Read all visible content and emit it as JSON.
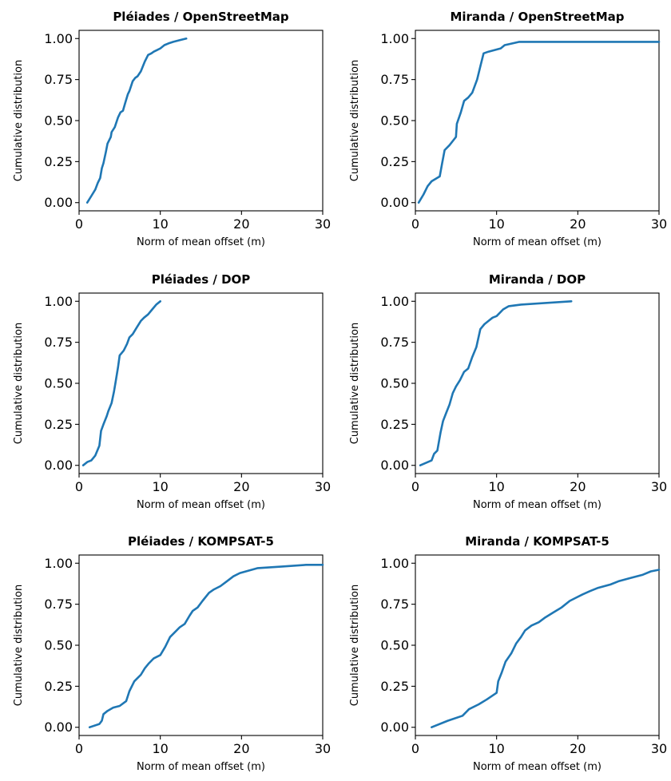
{
  "style": {
    "line_color": "#1f77b4"
  },
  "chart_data": [
    {
      "type": "line",
      "title": "Pléiades / OpenStreetMap",
      "xlabel": "Norm of mean offset (m)",
      "ylabel": "Cumulative distribution",
      "xlim": [
        0,
        30
      ],
      "ylim": [
        -0.05,
        1.05
      ],
      "xticks": [
        "0",
        "10",
        "20",
        "30"
      ],
      "yticks": [
        "0.00",
        "0.25",
        "0.50",
        "0.75",
        "1.00"
      ],
      "x": [
        1.0,
        1.5,
        2.0,
        2.3,
        2.6,
        2.8,
        3.0,
        3.3,
        3.5,
        3.9,
        4.0,
        4.4,
        4.8,
        5.1,
        5.4,
        5.7,
        6.0,
        6.2,
        6.6,
        6.9,
        7.2,
        7.6,
        8.1,
        8.5,
        8.9,
        9.2,
        9.6,
        10.0,
        10.5,
        11.0,
        11.6,
        12.4,
        13.2
      ],
      "y": [
        0.0,
        0.04,
        0.08,
        0.12,
        0.15,
        0.21,
        0.24,
        0.31,
        0.36,
        0.4,
        0.43,
        0.46,
        0.52,
        0.55,
        0.56,
        0.61,
        0.66,
        0.68,
        0.74,
        0.76,
        0.77,
        0.8,
        0.86,
        0.9,
        0.91,
        0.92,
        0.93,
        0.94,
        0.96,
        0.97,
        0.98,
        0.99,
        1.0
      ]
    },
    {
      "type": "line",
      "title": "Miranda / OpenStreetMap",
      "xlabel": "Norm of mean offset (m)",
      "ylabel": "Cumulative distribution",
      "xlim": [
        0,
        30
      ],
      "ylim": [
        -0.05,
        1.05
      ],
      "xticks": [
        "0",
        "10",
        "20",
        "30"
      ],
      "yticks": [
        "0.00",
        "0.25",
        "0.50",
        "0.75",
        "1.00"
      ],
      "x": [
        0.4,
        1.0,
        1.5,
        2.0,
        3.0,
        3.3,
        3.6,
        4.2,
        5.0,
        5.1,
        5.6,
        6.0,
        6.5,
        7.0,
        7.6,
        8.0,
        8.4,
        9.0,
        10.5,
        11.0,
        12.8,
        30.0
      ],
      "y": [
        0.0,
        0.05,
        0.1,
        0.13,
        0.16,
        0.24,
        0.32,
        0.35,
        0.4,
        0.48,
        0.55,
        0.62,
        0.64,
        0.67,
        0.75,
        0.83,
        0.91,
        0.92,
        0.94,
        0.96,
        0.98,
        0.98
      ]
    },
    {
      "type": "line",
      "title": "Pléiades / DOP",
      "xlabel": "Norm of mean offset (m)",
      "ylabel": "Cumulative distribution",
      "xlim": [
        0,
        30
      ],
      "ylim": [
        -0.05,
        1.05
      ],
      "xticks": [
        "0",
        "10",
        "20",
        "30"
      ],
      "yticks": [
        "0.00",
        "0.25",
        "0.50",
        "0.75",
        "1.00"
      ],
      "x": [
        0.5,
        1.0,
        1.5,
        2.0,
        2.5,
        2.7,
        3.0,
        3.4,
        3.6,
        4.0,
        4.3,
        4.5,
        4.8,
        5.0,
        5.5,
        5.9,
        6.2,
        6.6,
        7.1,
        7.6,
        8.0,
        8.5,
        9.0,
        9.5,
        10.0
      ],
      "y": [
        0.0,
        0.02,
        0.03,
        0.06,
        0.12,
        0.21,
        0.25,
        0.3,
        0.33,
        0.38,
        0.45,
        0.51,
        0.6,
        0.67,
        0.7,
        0.74,
        0.78,
        0.8,
        0.84,
        0.88,
        0.9,
        0.92,
        0.95,
        0.98,
        1.0
      ]
    },
    {
      "type": "line",
      "title": "Miranda / DOP",
      "xlabel": "Norm of mean offset (m)",
      "ylabel": "Cumulative distribution",
      "xlim": [
        0,
        30
      ],
      "ylim": [
        -0.05,
        1.05
      ],
      "xticks": [
        "0",
        "10",
        "20",
        "30"
      ],
      "yticks": [
        "0.00",
        "0.25",
        "0.50",
        "0.75",
        "1.00"
      ],
      "x": [
        0.6,
        2.0,
        2.3,
        2.7,
        3.1,
        3.4,
        3.8,
        4.2,
        4.6,
        5.0,
        5.5,
        6.0,
        6.5,
        7.0,
        7.5,
        8.0,
        8.5,
        9.0,
        9.5,
        10.0,
        10.8,
        11.5,
        13.0,
        19.2
      ],
      "y": [
        0.0,
        0.03,
        0.07,
        0.09,
        0.2,
        0.27,
        0.32,
        0.37,
        0.44,
        0.48,
        0.52,
        0.57,
        0.59,
        0.66,
        0.72,
        0.83,
        0.86,
        0.88,
        0.9,
        0.91,
        0.95,
        0.97,
        0.98,
        1.0
      ]
    },
    {
      "type": "line",
      "title": "Pléiades / KOMPSAT-5",
      "xlabel": "Norm of mean offset (m)",
      "ylabel": "Cumulative distribution",
      "xlim": [
        0,
        30
      ],
      "ylim": [
        -0.05,
        1.05
      ],
      "xticks": [
        "0",
        "10",
        "20",
        "30"
      ],
      "yticks": [
        "0.00",
        "0.25",
        "0.50",
        "0.75",
        "1.00"
      ],
      "x": [
        1.3,
        2.5,
        2.8,
        3.0,
        3.5,
        4.2,
        5.0,
        5.8,
        6.2,
        6.8,
        7.2,
        7.6,
        8.1,
        8.6,
        9.2,
        10.0,
        10.6,
        11.2,
        11.8,
        12.4,
        13.0,
        13.6,
        14.0,
        14.6,
        15.2,
        16.0,
        16.6,
        17.4,
        18.2,
        19.0,
        19.8,
        22.0,
        25.0,
        28.0,
        30.0
      ],
      "y": [
        0.0,
        0.02,
        0.04,
        0.08,
        0.1,
        0.12,
        0.13,
        0.16,
        0.22,
        0.28,
        0.3,
        0.32,
        0.36,
        0.39,
        0.42,
        0.44,
        0.49,
        0.55,
        0.58,
        0.61,
        0.63,
        0.68,
        0.71,
        0.73,
        0.77,
        0.82,
        0.84,
        0.86,
        0.89,
        0.92,
        0.94,
        0.97,
        0.98,
        0.99,
        0.99
      ]
    },
    {
      "type": "line",
      "title": "Miranda / KOMPSAT-5",
      "xlabel": "Norm of mean offset (m)",
      "ylabel": "Cumulative distribution",
      "xlim": [
        0,
        30
      ],
      "ylim": [
        -0.05,
        1.05
      ],
      "xticks": [
        "0",
        "10",
        "20",
        "30"
      ],
      "yticks": [
        "0.00",
        "0.25",
        "0.50",
        "0.75",
        "1.00"
      ],
      "x": [
        2.0,
        4.0,
        5.8,
        6.6,
        7.8,
        8.8,
        10.0,
        10.2,
        10.6,
        11.1,
        11.8,
        12.4,
        13.0,
        13.5,
        14.3,
        15.2,
        16.0,
        17.0,
        18.0,
        19.0,
        19.8,
        20.6,
        21.5,
        22.5,
        24.0,
        25.0,
        26.5,
        28.0,
        29.0,
        30.0
      ],
      "y": [
        0.0,
        0.04,
        0.07,
        0.11,
        0.14,
        0.17,
        0.21,
        0.28,
        0.33,
        0.4,
        0.45,
        0.51,
        0.55,
        0.59,
        0.62,
        0.64,
        0.67,
        0.7,
        0.73,
        0.77,
        0.79,
        0.81,
        0.83,
        0.85,
        0.87,
        0.89,
        0.91,
        0.93,
        0.95,
        0.96
      ]
    }
  ]
}
